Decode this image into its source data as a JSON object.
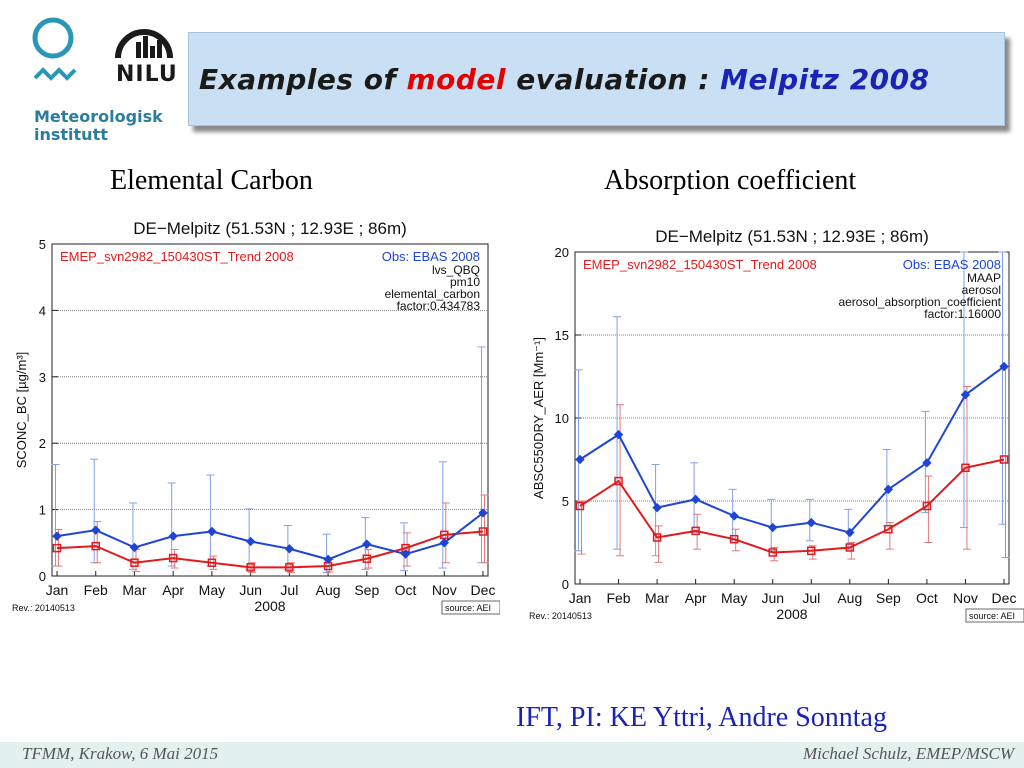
{
  "header": {
    "title_part1": "Examples of ",
    "title_red": "model",
    "title_part2": " evaluation : ",
    "title_blue": "Melpitz 2008",
    "met_logo_text_1": "Meteorologisk",
    "met_logo_text_2": "institutt",
    "nilu_logo_text": "NILU"
  },
  "labels": {
    "left_heading": "Elemental Carbon",
    "right_heading": "Absorption coefficient"
  },
  "credit": "IFT, PI: KE Yttri, Andre Sonntag",
  "footer": {
    "left": "TFMM, Krakow, 6 Mai 2015",
    "right": "Michael Schulz, EMEP/MSCW"
  },
  "colors": {
    "model": "#e31a1c",
    "obs": "#1f45d6",
    "obs_err": "#7fa0e8",
    "model_err": "#e07a7a"
  },
  "chart_data": [
    {
      "type": "line",
      "title": "DE−Melpitz (51.53N ; 12.93E ; 86m)",
      "model_label": "EMEP_svn2982_150430ST_Trend 2008",
      "obs_label": "Obs: EBAS 2008",
      "info_lines": [
        "lvs_QBQ",
        "pm10",
        "elemental_carbon",
        "factor:0.434783"
      ],
      "ylabel": "SCONC_BC [µg/m³]",
      "xlabel": "2008",
      "rev": "Rev.: 20140513",
      "source": "source: AEI",
      "ylim": [
        0,
        5
      ],
      "yticks": [
        0,
        1,
        2,
        3,
        4,
        5
      ],
      "grid": true,
      "categories": [
        "Jan",
        "Feb",
        "Mar",
        "Apr",
        "May",
        "Jun",
        "Jul",
        "Aug",
        "Sep",
        "Oct",
        "Nov",
        "Dec"
      ],
      "series": [
        {
          "name": "Obs: EBAS 2008",
          "values": [
            0.6,
            0.69,
            0.43,
            0.6,
            0.67,
            0.52,
            0.41,
            0.25,
            0.48,
            0.33,
            0.5,
            0.95
          ],
          "err_high": [
            1.68,
            1.76,
            1.1,
            1.4,
            1.52,
            1.01,
            0.76,
            0.63,
            0.88,
            0.8,
            1.72,
            3.45
          ],
          "err_low": [
            0.15,
            0.2,
            0.1,
            0.15,
            0.15,
            0.1,
            0.1,
            0.05,
            0.1,
            0.08,
            0.12,
            0.2
          ]
        },
        {
          "name": "EMEP_svn2982_150430ST_Trend 2008",
          "values": [
            0.42,
            0.45,
            0.2,
            0.27,
            0.2,
            0.13,
            0.13,
            0.15,
            0.26,
            0.42,
            0.62,
            0.67
          ],
          "err_high": [
            0.7,
            0.82,
            0.4,
            0.4,
            0.3,
            0.2,
            0.2,
            0.25,
            0.4,
            0.65,
            1.1,
            1.22
          ],
          "err_low": [
            0.15,
            0.2,
            0.07,
            0.12,
            0.1,
            0.05,
            0.05,
            0.06,
            0.12,
            0.15,
            0.2,
            0.2
          ]
        }
      ]
    },
    {
      "type": "line",
      "title": "DE−Melpitz (51.53N ; 12.93E ; 86m)",
      "model_label": "EMEP_svn2982_150430ST_Trend 2008",
      "obs_label": "Obs: EBAS 2008",
      "info_lines": [
        "MAAP",
        "aerosol",
        "aerosol_absorption_coefficient",
        "factor:1.16000"
      ],
      "ylabel": "ABSC550DRY_AER [Mm⁻¹]",
      "xlabel": "2008",
      "rev": "Rev.: 20140513",
      "source": "source: AEI",
      "ylim": [
        0,
        20
      ],
      "yticks": [
        0,
        5,
        10,
        15,
        20
      ],
      "grid": true,
      "categories": [
        "Jan",
        "Feb",
        "Mar",
        "Apr",
        "May",
        "Jun",
        "Jul",
        "Aug",
        "Sep",
        "Oct",
        "Nov",
        "Dec"
      ],
      "series": [
        {
          "name": "Obs: EBAS 2008",
          "values": [
            7.5,
            9.0,
            4.6,
            5.1,
            4.1,
            3.4,
            3.7,
            3.1,
            5.7,
            7.3,
            11.4,
            13.1
          ],
          "err_high": [
            12.9,
            16.1,
            7.2,
            7.3,
            5.7,
            5.1,
            5.1,
            4.5,
            8.1,
            10.4,
            20.0,
            20.0
          ],
          "err_low": [
            2.0,
            2.1,
            1.7,
            3.1,
            2.6,
            2.0,
            2.6,
            2.1,
            3.5,
            4.3,
            3.4,
            3.6
          ]
        },
        {
          "name": "EMEP_svn2982_150430ST_Trend 2008",
          "values": [
            4.7,
            6.2,
            2.8,
            3.2,
            2.7,
            1.9,
            2.0,
            2.2,
            3.3,
            4.7,
            7.0,
            7.5
          ],
          "err_high": [
            5.0,
            10.8,
            3.5,
            4.2,
            3.3,
            2.2,
            2.3,
            2.5,
            3.7,
            6.5,
            11.9,
            13.0
          ],
          "err_low": [
            1.8,
            1.7,
            1.3,
            2.1,
            2.0,
            1.4,
            1.5,
            1.5,
            2.1,
            2.5,
            2.1,
            1.6
          ]
        }
      ]
    }
  ]
}
